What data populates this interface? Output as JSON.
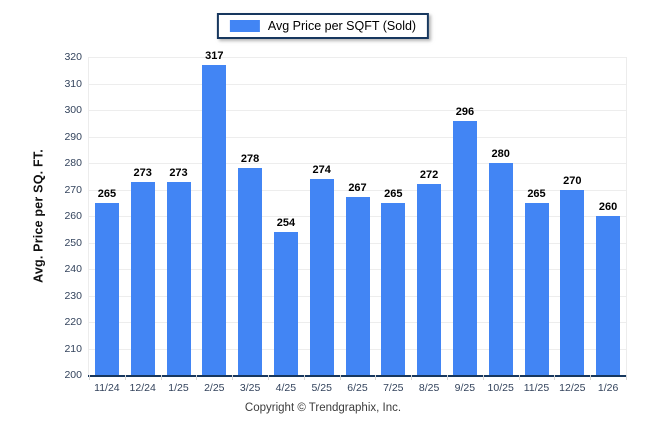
{
  "legend": {
    "label": "Avg Price per SQFT (Sold)"
  },
  "footer": {
    "copyright": "Copyright © Trendgraphix, Inc."
  },
  "chart_data": {
    "type": "bar",
    "title": "",
    "categories": [
      "11/24",
      "12/24",
      "1/25",
      "2/25",
      "3/25",
      "4/25",
      "5/25",
      "6/25",
      "7/25",
      "8/25",
      "9/25",
      "10/25",
      "11/25",
      "12/25",
      "1/26"
    ],
    "values": [
      265,
      273,
      273,
      317,
      278,
      254,
      274,
      267,
      265,
      272,
      296,
      280,
      265,
      270,
      260
    ],
    "xlabel": "",
    "ylabel": "Avg. Price per SQ. FT.",
    "ylim": [
      200,
      320
    ],
    "ytick_step": 10,
    "grid": true,
    "legend_position": "top",
    "bar_color": "#4285f4",
    "axis_color": "#17375e",
    "grid_color": "#ededed",
    "tick_label_color": "#33435c"
  }
}
